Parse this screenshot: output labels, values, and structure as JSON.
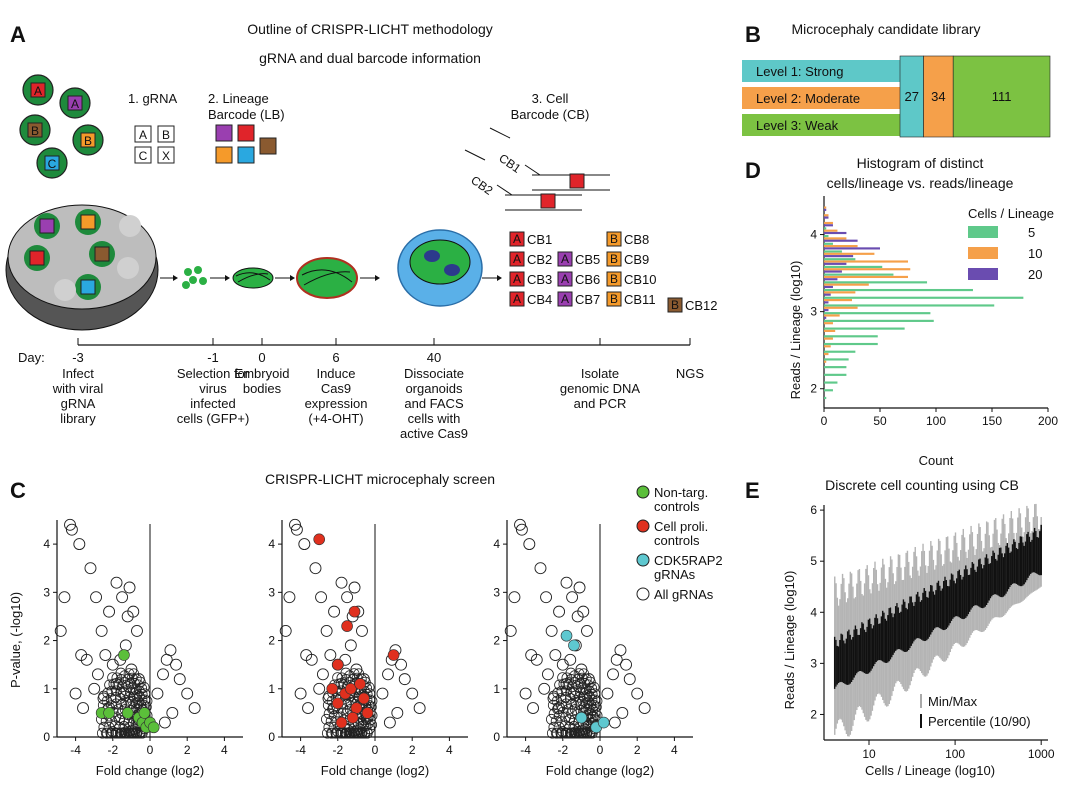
{
  "panels": {
    "A": {
      "label": "A",
      "title": "Outline of CRISPR-LICHT methodology",
      "subtitle": "gRNA and dual barcode information",
      "gRNA_label": "1. gRNA",
      "gRNA_letters": [
        "A",
        "B",
        "C",
        "X"
      ],
      "lineage_label_1": "2. Lineage",
      "lineage_label_2": "Barcode (LB)",
      "cell_label_1": "3. Cell",
      "cell_label_2": "Barcode (CB)",
      "cb1": "CB1",
      "cb2": "CB2",
      "cell_barcodes": [
        {
          "letter": "A",
          "label": "CB1"
        },
        {
          "letter": "A",
          "label": "CB2"
        },
        {
          "letter": "A",
          "label": "CB3"
        },
        {
          "letter": "A",
          "label": "CB4"
        },
        {
          "letter": "A",
          "label": "CB5"
        },
        {
          "letter": "A",
          "label": "CB6"
        },
        {
          "letter": "A",
          "label": "CB7"
        },
        {
          "letter": "B",
          "label": "CB8"
        },
        {
          "letter": "B",
          "label": "CB9"
        },
        {
          "letter": "B",
          "label": "CB10"
        },
        {
          "letter": "B",
          "label": "CB11"
        },
        {
          "letter": "B",
          "label": "CB12"
        }
      ],
      "day_label": "Day:",
      "timeline": [
        {
          "day": "-3",
          "lines": [
            "Infect",
            "with viral",
            "gRNA",
            "library"
          ]
        },
        {
          "day": "-1",
          "lines": [
            "Selection for",
            "virus",
            "infected",
            "cells (GFP+)"
          ]
        },
        {
          "day": "0",
          "lines": [
            "Embryoid",
            "bodies"
          ]
        },
        {
          "day": "6",
          "lines": [
            "Induce",
            "Cas9",
            "expression",
            "(+4-OHT)"
          ]
        },
        {
          "day": "40",
          "lines": [
            "Dissociate",
            "organoids",
            "and FACS",
            "cells with",
            "active Cas9"
          ]
        },
        {
          "day": "",
          "lines": [
            "Isolate",
            "genomic DNA",
            "and PCR"
          ]
        },
        {
          "day": "",
          "lines": [
            "NGS"
          ]
        }
      ]
    },
    "B": {
      "label": "B",
      "title": "Microcephaly candidate library",
      "levels": [
        {
          "name": "Level 1: Strong",
          "value": 27,
          "color": "#5ec8c8"
        },
        {
          "name": "Level 2: Moderate",
          "value": 34,
          "color": "#f5a04a"
        },
        {
          "name": "Level 3: Weak",
          "value": 111,
          "color": "#7cc242"
        }
      ]
    },
    "C": {
      "label": "C",
      "title": "CRISPR-LICHT microcephaly screen",
      "xlabel": "Fold change (log2)",
      "ylabel": "P-value, (-log10)",
      "legend": [
        {
          "name": "Non-targ. controls",
          "lines": [
            "Non-targ.",
            "controls"
          ],
          "color": "#5bbf3a"
        },
        {
          "name": "Cell proli. controls",
          "lines": [
            "Cell proli.",
            "controls"
          ],
          "color": "#e0301e"
        },
        {
          "name": "CDK5RAP2 gRNAs",
          "lines": [
            "CDK5RAP2",
            "gRNAs"
          ],
          "color": "#5ec8d0"
        },
        {
          "name": "All gRNAs",
          "lines": [
            "All gRNAs"
          ],
          "color": "#ffffff"
        }
      ]
    },
    "D": {
      "label": "D",
      "title_1": "Histogram of distinct",
      "title_2": "cells/lineage vs. reads/lineage",
      "legend_title": "Cells / Lineage",
      "xlabel": "Count",
      "ylabel": "Reads / Lineage (log10)"
    },
    "E": {
      "label": "E",
      "title": "Discrete cell counting using CB",
      "xlabel": "Cells / Lineage (log10)",
      "ylabel": "Reads / Lineage (log10)",
      "legend": [
        "Min/Max",
        "Percentile (10/90)"
      ]
    }
  },
  "chart_data": [
    {
      "type": "bar",
      "id": "B",
      "title": "Microcephaly candidate library",
      "orientation": "stacked-horizontal",
      "categories": [
        "Level 1: Strong",
        "Level 2: Moderate",
        "Level 3: Weak"
      ],
      "values": [
        27,
        34,
        111
      ]
    },
    {
      "type": "scatter",
      "id": "C",
      "title": "CRISPR-LICHT microcephaly screen",
      "xlabel": "Fold change (log2)",
      "ylabel": "P-value, (-log10)",
      "xlim": [
        -5,
        5
      ],
      "ylim": [
        0,
        4.5
      ],
      "xticks": [
        -4,
        -2,
        0,
        2,
        4
      ],
      "yticks": [
        0,
        1,
        2,
        3,
        4
      ],
      "all_gRNAs_background": [
        [
          -4.3,
          4.4
        ],
        [
          -4.2,
          4.3
        ],
        [
          -3.8,
          4.0
        ],
        [
          -4.6,
          2.9
        ],
        [
          -4.8,
          2.2
        ],
        [
          -3.2,
          3.5
        ],
        [
          -2.9,
          2.9
        ],
        [
          -2.6,
          2.2
        ],
        [
          -2.2,
          2.6
        ],
        [
          -2.4,
          1.7
        ],
        [
          -2.0,
          1.5
        ],
        [
          -1.8,
          3.2
        ],
        [
          -1.5,
          2.9
        ],
        [
          -1.2,
          2.5
        ],
        [
          -1.1,
          3.1
        ],
        [
          -0.9,
          2.6
        ],
        [
          -0.7,
          2.2
        ],
        [
          -1.3,
          1.9
        ],
        [
          -1.6,
          1.6
        ],
        [
          -2.8,
          1.3
        ],
        [
          -3.0,
          1.0
        ],
        [
          -3.4,
          1.6
        ],
        [
          -3.7,
          1.7
        ],
        [
          -4.0,
          0.9
        ],
        [
          -3.6,
          0.6
        ],
        [
          -2.5,
          0.8
        ],
        [
          -1.0,
          1.4
        ],
        [
          -0.6,
          1.2
        ],
        [
          0.4,
          0.9
        ],
        [
          0.7,
          1.3
        ],
        [
          0.9,
          1.6
        ],
        [
          1.1,
          1.8
        ],
        [
          1.4,
          1.5
        ],
        [
          1.6,
          1.2
        ],
        [
          2.0,
          0.9
        ],
        [
          2.4,
          0.6
        ],
        [
          1.2,
          0.5
        ],
        [
          0.8,
          0.3
        ],
        [
          -0.4,
          0.4
        ],
        [
          -1.8,
          1.1
        ],
        [
          -2.2,
          0.6
        ],
        [
          -1.4,
          0.9
        ]
      ],
      "non_targeting_controls": [
        [
          -2.6,
          0.5
        ],
        [
          -2.2,
          0.5
        ],
        [
          -1.4,
          1.7
        ],
        [
          -1.2,
          0.5
        ],
        [
          -0.6,
          0.4
        ],
        [
          -0.4,
          0.3
        ],
        [
          -0.2,
          0.2
        ],
        [
          0.0,
          0.3
        ],
        [
          0.2,
          0.2
        ],
        [
          -0.3,
          0.5
        ]
      ],
      "cell_proliferation_controls": [
        [
          -3.0,
          4.1
        ],
        [
          -1.1,
          2.6
        ],
        [
          -1.5,
          2.3
        ],
        [
          -2.0,
          1.5
        ],
        [
          -2.3,
          1.0
        ],
        [
          -2.0,
          0.7
        ],
        [
          -1.8,
          0.3
        ],
        [
          -1.6,
          0.9
        ],
        [
          -1.3,
          1.0
        ],
        [
          -1.0,
          0.6
        ],
        [
          -0.8,
          1.1
        ],
        [
          -0.6,
          0.8
        ],
        [
          -0.4,
          0.5
        ],
        [
          -1.2,
          0.4
        ],
        [
          1.0,
          1.7
        ]
      ],
      "CDK5RAP2_gRNAs": [
        [
          -1.8,
          2.1
        ],
        [
          -1.4,
          1.9
        ],
        [
          -1.0,
          0.4
        ],
        [
          -0.2,
          0.2
        ],
        [
          0.2,
          0.3
        ]
      ]
    },
    {
      "type": "bar",
      "id": "D",
      "orientation": "horizontal",
      "title": "Histogram of distinct cells/lineage vs. reads/lineage",
      "xlabel": "Count",
      "ylabel": "Reads / Lineage (log10)",
      "xlim": [
        0,
        200
      ],
      "ylim": [
        1.75,
        4.5
      ],
      "xticks": [
        0,
        50,
        100,
        150,
        200
      ],
      "yticks": [
        2,
        3,
        4
      ],
      "bin_centers": [
        1.85,
        1.95,
        2.05,
        2.15,
        2.25,
        2.35,
        2.45,
        2.55,
        2.65,
        2.75,
        2.85,
        2.95,
        3.05,
        3.15,
        3.25,
        3.35,
        3.45,
        3.55,
        3.65,
        3.75,
        3.85,
        3.95,
        4.05,
        4.15,
        4.25,
        4.35
      ],
      "series": [
        {
          "name": "5",
          "color": "#5fc98a",
          "values": [
            2,
            8,
            12,
            20,
            20,
            22,
            28,
            48,
            48,
            72,
            98,
            95,
            152,
            178,
            133,
            92,
            62,
            52,
            28,
            16,
            8,
            4,
            2,
            0,
            0,
            0
          ]
        },
        {
          "name": "10",
          "color": "#f5a04a",
          "values": [
            0,
            0,
            0,
            0,
            0,
            2,
            4,
            6,
            8,
            10,
            8,
            14,
            30,
            25,
            28,
            40,
            75,
            77,
            75,
            45,
            30,
            20,
            12,
            8,
            4,
            2
          ]
        },
        {
          "name": "20",
          "color": "#6a4cb0",
          "values": [
            0,
            0,
            0,
            0,
            0,
            0,
            0,
            0,
            0,
            0,
            0,
            2,
            4,
            4,
            6,
            8,
            12,
            16,
            20,
            26,
            50,
            30,
            20,
            8,
            4,
            2
          ]
        }
      ]
    },
    {
      "type": "line",
      "id": "E",
      "title": "Discrete cell counting using CB",
      "xlabel": "Cells / Lineage (log10)",
      "ylabel": "Reads / Lineage (log10)",
      "xscale": "log",
      "xlim": [
        3,
        1200
      ],
      "ylim": [
        1.5,
        6.1
      ],
      "xticks": [
        10,
        100,
        1000
      ],
      "yticks": [
        2,
        3,
        4,
        5,
        6
      ],
      "minmax": {
        "x_range": [
          4,
          1000
        ],
        "low_start": 1.6,
        "low_end": 4.5,
        "high_start": 4.4,
        "high_end": 5.9
      },
      "percentile_10_90": {
        "x_range": [
          4,
          1000
        ],
        "low_start": 2.5,
        "low_end": 4.8,
        "high_start": 3.4,
        "high_end": 5.6
      }
    }
  ]
}
